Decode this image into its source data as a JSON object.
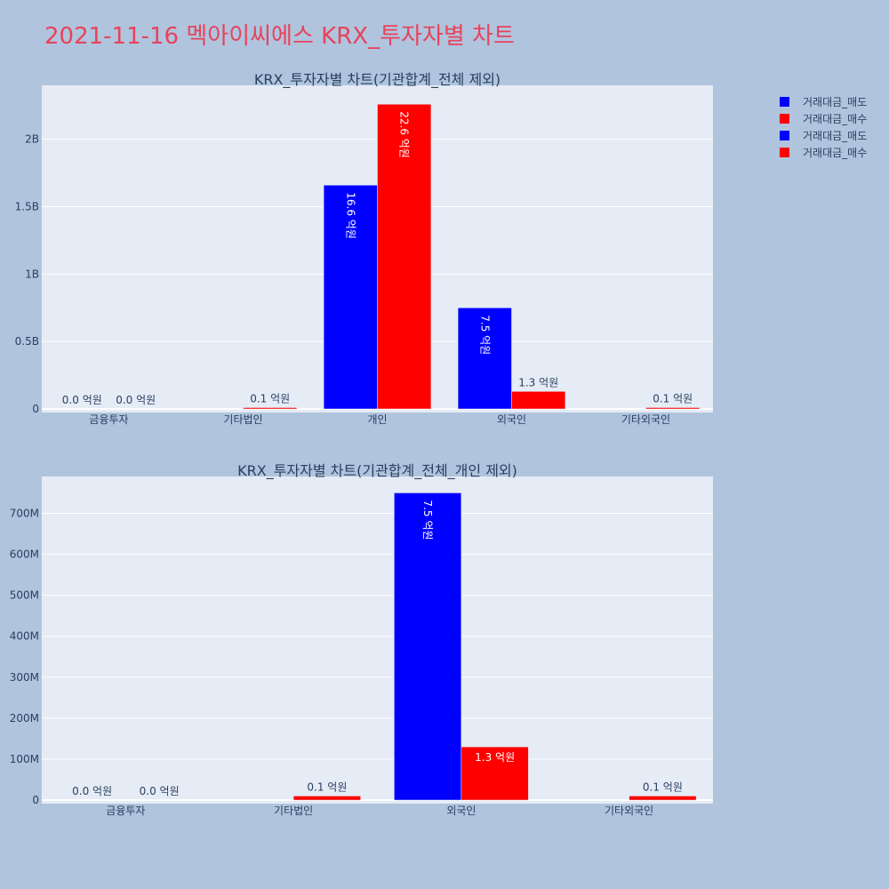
{
  "title": "2021-11-16 멕아이씨에스 KRX_투자자별 차트",
  "legend": [
    {
      "label": "거래대금_매도",
      "color": "#0000ff"
    },
    {
      "label": "거래대금_매수",
      "color": "#ff0000"
    },
    {
      "label": "거래대금_매도",
      "color": "#0000ff"
    },
    {
      "label": "거래대금_매수",
      "color": "#ff0000"
    }
  ],
  "chart_data": [
    {
      "type": "bar",
      "title": "KRX_투자자별 차트(기관합계_전체 제외)",
      "categories": [
        "금융투자",
        "기타법인",
        "개인",
        "외국인",
        "기타외국인"
      ],
      "series": [
        {
          "name": "거래대금_매도",
          "color": "#0000ff",
          "values": [
            0,
            0,
            1660000000,
            750000000,
            0
          ],
          "labels": [
            "0.0 억원",
            "",
            "16.6 억원",
            "7.5 억원",
            ""
          ]
        },
        {
          "name": "거래대금_매수",
          "color": "#ff0000",
          "values": [
            0,
            10000000,
            2260000000,
            130000000,
            10000000
          ],
          "labels": [
            "0.0 억원",
            "0.1 억원",
            "22.6 억원",
            "1.3 억원",
            "0.1 억원"
          ]
        }
      ],
      "ylim": [
        0,
        2400000000
      ],
      "yticks": [
        0,
        500000000,
        1000000000,
        1500000000,
        2000000000
      ],
      "ytick_labels": [
        "0",
        "0.5B",
        "1B",
        "1.5B",
        "2B"
      ],
      "grid": true
    },
    {
      "type": "bar",
      "title": "KRX_투자자별 차트(기관합계_전체_개인 제외)",
      "categories": [
        "금융투자",
        "기타법인",
        "외국인",
        "기타외국인"
      ],
      "series": [
        {
          "name": "거래대금_매도",
          "color": "#0000ff",
          "values": [
            0,
            0,
            750000000,
            0
          ],
          "labels": [
            "0.0 억원",
            "",
            "7.5 억원",
            ""
          ]
        },
        {
          "name": "거래대금_매수",
          "color": "#ff0000",
          "values": [
            0,
            10000000,
            130000000,
            10000000
          ],
          "labels": [
            "0.0 억원",
            "0.1 억원",
            "1.3 억원",
            "0.1 억원"
          ]
        }
      ],
      "ylim": [
        0,
        790000000
      ],
      "yticks": [
        0,
        100000000,
        200000000,
        300000000,
        400000000,
        500000000,
        600000000,
        700000000
      ],
      "ytick_labels": [
        "0",
        "100M",
        "200M",
        "300M",
        "400M",
        "500M",
        "600M",
        "700M"
      ],
      "grid": true
    }
  ]
}
